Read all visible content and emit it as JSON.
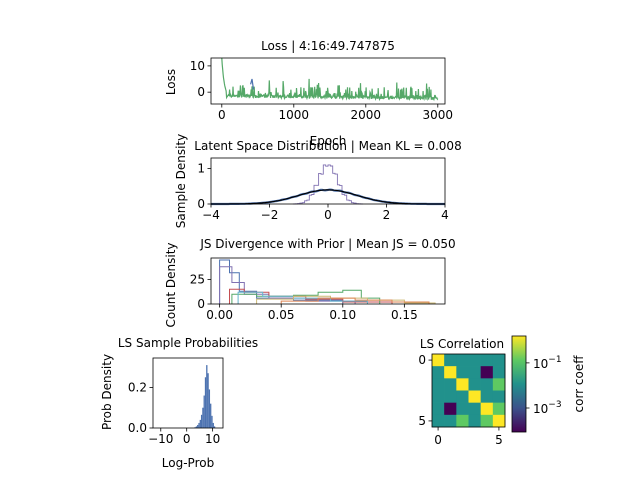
{
  "figure": {
    "background": "#ffffff"
  },
  "chart_data": [
    {
      "id": "loss",
      "type": "line",
      "title": "Loss | 4:16:49.747875",
      "xlabel": "Epoch",
      "ylabel": "Loss",
      "xlim": [
        -150,
        3100
      ],
      "ylim": [
        -4.5,
        13
      ],
      "xticks": [
        0,
        1000,
        2000,
        3000
      ],
      "yticks": [
        0,
        10
      ],
      "grid": false,
      "series": [
        {
          "color": "#4c72b0",
          "segments": [
            [
              400,
              3
            ],
            [
              420,
              5
            ],
            [
              440,
              1
            ]
          ]
        },
        {
          "color": "#55a868",
          "start": 13,
          "floor": -2.2
        }
      ]
    },
    {
      "id": "latent",
      "type": "line",
      "title": "Latent Space Distribution | Mean KL = 0.008",
      "ylabel": "Sample Density",
      "xlim": [
        -4,
        4
      ],
      "ylim": [
        0,
        1.3
      ],
      "xticks": [
        -4,
        -2,
        0,
        2,
        4
      ],
      "yticks": [
        0,
        1
      ],
      "grid": false,
      "prior": {
        "sigma": 1,
        "color": "#000000"
      },
      "series": [
        {
          "sigma": 0.33,
          "color": "#8172b2",
          "style": "step"
        },
        {
          "sigma": 1.0,
          "color": "#4c72b0",
          "style": "line"
        }
      ]
    },
    {
      "id": "js",
      "type": "line",
      "title": "JS Divergence with Prior | Mean JS = 0.050",
      "ylabel": "Count Density",
      "xlim": [
        -0.007,
        0.183
      ],
      "ylim": [
        0,
        47
      ],
      "xticks": [
        0.0,
        0.05,
        0.1,
        0.15
      ],
      "xtick_labels": [
        "0.00",
        "0.05",
        "0.10",
        "0.15"
      ],
      "yticks": [
        0,
        25
      ],
      "grid": false,
      "series": [
        {
          "color": "#4c72b0",
          "edges": [
            0.0,
            0.008,
            0.016,
            0.03,
            0.06,
            0.1
          ],
          "counts": [
            45,
            32,
            13,
            6,
            4
          ]
        },
        {
          "color": "#8172b2",
          "edges": [
            0.0,
            0.01,
            0.02,
            0.04,
            0.07,
            0.11
          ],
          "counts": [
            38,
            22,
            10,
            6,
            3
          ]
        },
        {
          "color": "#c44e52",
          "edges": [
            0.008,
            0.02,
            0.04,
            0.07,
            0.1,
            0.14
          ],
          "counts": [
            15,
            12,
            8,
            5,
            2
          ]
        },
        {
          "color": "#55a868",
          "edges": [
            0.01,
            0.03,
            0.06,
            0.08,
            0.1,
            0.115,
            0.13
          ],
          "counts": [
            10,
            8,
            9,
            12,
            14,
            6
          ]
        },
        {
          "color": "#64b5cd",
          "edges": [
            0.015,
            0.035,
            0.06,
            0.09,
            0.12
          ],
          "counts": [
            12,
            8,
            6,
            3
          ]
        },
        {
          "color": "#ccb974",
          "edges": [
            0.03,
            0.06,
            0.09,
            0.12,
            0.15,
            0.175
          ],
          "counts": [
            5,
            8,
            6,
            4,
            1
          ]
        },
        {
          "color": "#dd8452",
          "edges": [
            0.05,
            0.08,
            0.11,
            0.14,
            0.17
          ],
          "counts": [
            3,
            6,
            4,
            2
          ]
        }
      ]
    },
    {
      "id": "probs",
      "type": "bar",
      "title": "LS Sample Probabilities",
      "xlabel": "Log-Prob",
      "ylabel": "Prob Density",
      "xlim": [
        -13,
        14
      ],
      "ylim": [
        0,
        0.345
      ],
      "xticks": [
        -10,
        0,
        10
      ],
      "yticks": [
        0.0,
        0.2
      ],
      "ytick_labels": [
        "0.0",
        "0.2"
      ],
      "grid": false,
      "color": "#4c72b0",
      "bins": [
        {
          "x": 3.0,
          "w": 0.5,
          "v": 0.004
        },
        {
          "x": 3.5,
          "w": 0.5,
          "v": 0.008
        },
        {
          "x": 4.0,
          "w": 0.5,
          "v": 0.015
        },
        {
          "x": 4.5,
          "w": 0.5,
          "v": 0.025
        },
        {
          "x": 5.0,
          "w": 0.5,
          "v": 0.04
        },
        {
          "x": 5.5,
          "w": 0.5,
          "v": 0.065
        },
        {
          "x": 6.0,
          "w": 0.5,
          "v": 0.1
        },
        {
          "x": 6.5,
          "w": 0.5,
          "v": 0.16
        },
        {
          "x": 7.0,
          "w": 0.5,
          "v": 0.25
        },
        {
          "x": 7.5,
          "w": 0.5,
          "v": 0.31
        },
        {
          "x": 8.0,
          "w": 0.5,
          "v": 0.27
        },
        {
          "x": 8.5,
          "w": 0.5,
          "v": 0.19
        },
        {
          "x": 9.0,
          "w": 0.5,
          "v": 0.12
        },
        {
          "x": 9.5,
          "w": 0.5,
          "v": 0.06
        },
        {
          "x": 10.0,
          "w": 0.5,
          "v": 0.025
        },
        {
          "x": 10.5,
          "w": 0.5,
          "v": 0.008
        }
      ]
    },
    {
      "id": "corr",
      "type": "heatmap",
      "title": "LS Correlation",
      "xticks": [
        0,
        5
      ],
      "yticks": [
        0,
        5
      ],
      "colorbar_label": "corr coeff",
      "colorbar_scale": "log",
      "colorbar_ticks": [
        {
          "label_base": "10",
          "label_exp": "−1",
          "pos": 0.28
        },
        {
          "label_base": "10",
          "label_exp": "−3",
          "pos": 0.75
        }
      ],
      "colors": [
        "#440154",
        "#3b528b",
        "#21918c",
        "#5ec962",
        "#fde725"
      ],
      "matrix": [
        [
          4,
          2,
          2,
          2,
          2,
          2
        ],
        [
          2,
          4,
          2,
          2,
          0,
          2
        ],
        [
          2,
          2,
          4,
          2,
          2,
          3
        ],
        [
          2,
          2,
          2,
          4,
          2,
          2
        ],
        [
          2,
          0,
          2,
          2,
          4,
          3
        ],
        [
          2,
          2,
          3,
          2,
          3,
          4
        ]
      ]
    }
  ]
}
